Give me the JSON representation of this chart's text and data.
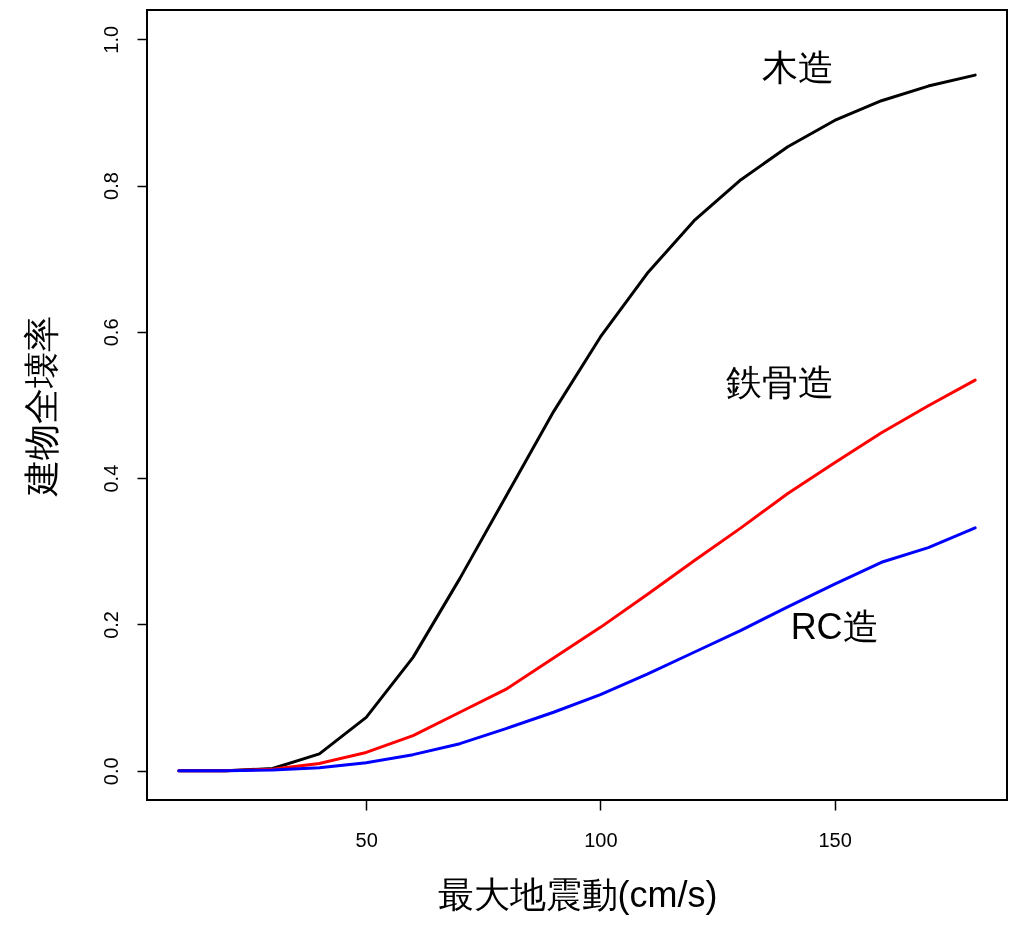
{
  "chart_data": {
    "type": "line",
    "xlabel": "最大地震動(cm/s)",
    "ylabel": "建物全壊率",
    "x": [
      10,
      20,
      30,
      40,
      50,
      60,
      70,
      80,
      90,
      100,
      110,
      120,
      130,
      140,
      150,
      160,
      170,
      180
    ],
    "series": [
      {
        "name": "木造",
        "color": "#000000",
        "values": [
          0,
          0,
          0.003,
          0.023,
          0.073,
          0.155,
          0.263,
          0.377,
          0.491,
          0.593,
          0.68,
          0.752,
          0.808,
          0.853,
          0.889,
          0.916,
          0.936,
          0.951
        ]
      },
      {
        "name": "鉄骨造",
        "color": "#ff0000",
        "values": [
          0,
          0,
          0.002,
          0.01,
          0.025,
          0.048,
          0.08,
          0.112,
          0.154,
          0.196,
          0.241,
          0.287,
          0.332,
          0.379,
          0.421,
          0.462,
          0.499,
          0.534
        ]
      },
      {
        "name": "RC造",
        "color": "#0000ff",
        "values": [
          0,
          0,
          0.001,
          0.004,
          0.011,
          0.022,
          0.037,
          0.058,
          0.08,
          0.104,
          0.132,
          0.162,
          0.192,
          0.224,
          0.255,
          0.285,
          0.305,
          0.332
        ]
      }
    ],
    "xlim": [
      3.2,
      186.8
    ],
    "ylim": [
      -0.04,
      1.04
    ],
    "xticks": [
      50,
      100,
      150
    ],
    "yticks": [
      {
        "value": 0,
        "label": "0.0"
      },
      {
        "value": 0.2,
        "label": "0.2"
      },
      {
        "value": 0.4,
        "label": "0.4"
      },
      {
        "value": 0.6,
        "label": "0.6"
      },
      {
        "value": 0.8,
        "label": "0.8"
      },
      {
        "value": 1,
        "label": "1.0"
      }
    ],
    "grid": false,
    "marker": "none",
    "line_style": "solid"
  }
}
